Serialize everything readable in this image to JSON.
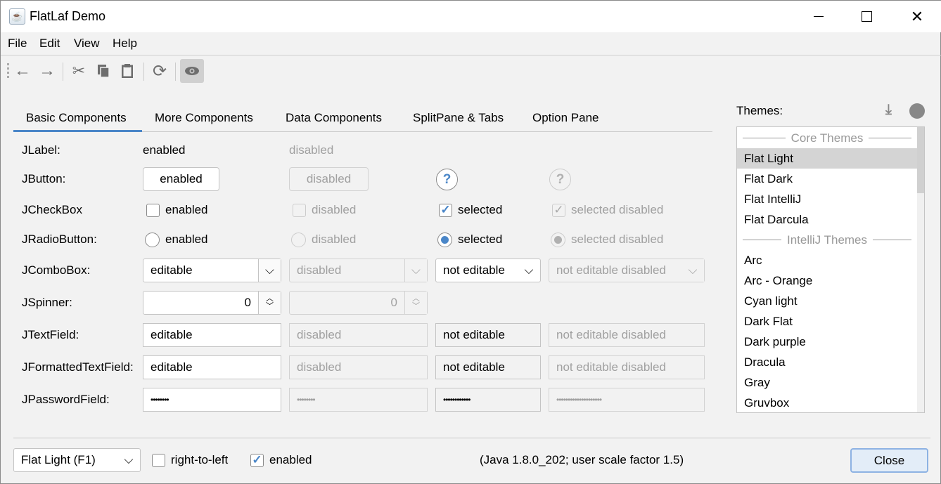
{
  "window": {
    "title": "FlatLaf Demo"
  },
  "menu": [
    "File",
    "Edit",
    "View",
    "Help"
  ],
  "toolbar": [
    "back-icon",
    "forward-icon",
    "cut-icon",
    "copy-icon",
    "paste-icon",
    "refresh-icon",
    "eye-icon"
  ],
  "tabs": [
    "Basic Components",
    "More Components",
    "Data Components",
    "SplitPane & Tabs",
    "Option Pane"
  ],
  "rows": {
    "label": {
      "name": "JLabel:",
      "enabled": "enabled",
      "disabled": "disabled"
    },
    "button": {
      "name": "JButton:",
      "enabled": "enabled",
      "disabled": "disabled",
      "help": "?"
    },
    "checkbox": {
      "name": "JCheckBox",
      "enabled": "enabled",
      "disabled": "disabled",
      "selected": "selected",
      "selected_disabled": "selected disabled"
    },
    "radio": {
      "name": "JRadioButton:",
      "enabled": "enabled",
      "disabled": "disabled",
      "selected": "selected",
      "selected_disabled": "selected disabled"
    },
    "combo": {
      "name": "JComboBox:",
      "editable": "editable",
      "disabled": "disabled",
      "not_editable": "not editable",
      "not_editable_disabled": "not editable disabled"
    },
    "spinner": {
      "name": "JSpinner:",
      "enabled": "0",
      "disabled": "0"
    },
    "textfield": {
      "name": "JTextField:",
      "editable": "editable",
      "disabled": "disabled",
      "not_editable": "not editable",
      "not_editable_disabled": "not editable disabled"
    },
    "formatted": {
      "name": "JFormattedTextField:",
      "editable": "editable",
      "disabled": "disabled",
      "not_editable": "not editable",
      "not_editable_disabled": "not editable disabled"
    },
    "password": {
      "name": "JPasswordField:",
      "editable": "••••••••",
      "disabled": "••••••••",
      "not_editable": "••••••••••••",
      "not_editable_disabled": "••••••••••••••••••••"
    }
  },
  "themes": {
    "label": "Themes:",
    "items": [
      {
        "text": "Core Themes",
        "header": true
      },
      {
        "text": "Flat Light",
        "selected": true
      },
      {
        "text": "Flat Dark"
      },
      {
        "text": "Flat IntelliJ"
      },
      {
        "text": "Flat Darcula"
      },
      {
        "text": "IntelliJ Themes",
        "header": true
      },
      {
        "text": "Arc"
      },
      {
        "text": "Arc - Orange"
      },
      {
        "text": "Cyan light"
      },
      {
        "text": "Dark Flat"
      },
      {
        "text": "Dark purple"
      },
      {
        "text": "Dracula"
      },
      {
        "text": "Gray"
      },
      {
        "text": "Gruvbox"
      }
    ]
  },
  "bottom": {
    "theme_combo": "Flat Light (F1)",
    "rtl": "right-to-left",
    "enabled": "enabled",
    "info": "(Java 1.8.0_202;  user scale factor 1.5)",
    "close": "Close"
  },
  "colors": {
    "accent": "#4a86c8",
    "selection": "#d4d4d4"
  }
}
